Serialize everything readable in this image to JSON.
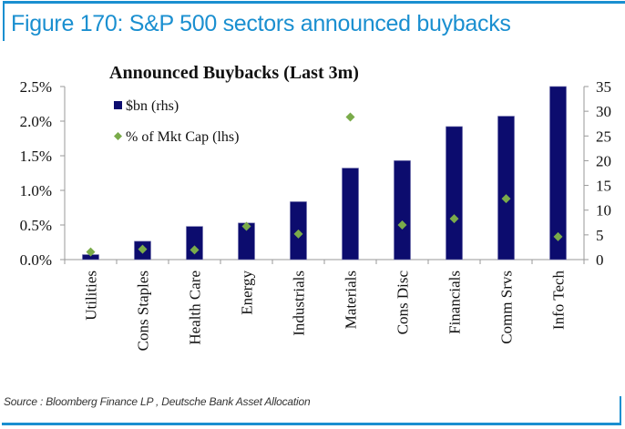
{
  "figure": {
    "title": "Figure 170: S&P 500 sectors announced buybacks",
    "source": "Source : Bloomberg Finance LP , Deutsche Bank Asset Allocation",
    "accent_color": "#1a8fd0"
  },
  "chart_data": {
    "type": "bar",
    "title": "Announced Buybacks (Last 3m)",
    "xlabel": "",
    "categories": [
      "Utilities",
      "Cons Staples",
      "Health Care",
      "Energy",
      "Industrials",
      "Materials",
      "Cons Disc",
      "Financials",
      "Comm Srvs",
      "Info Tech"
    ],
    "series": [
      {
        "name": "$bn (rhs)",
        "kind": "bar",
        "axis": "right",
        "color": "#0c0c6e",
        "values": [
          1.0,
          3.7,
          6.7,
          7.4,
          11.7,
          18.5,
          20.0,
          26.9,
          29.0,
          35.0
        ]
      },
      {
        "name": "% of Mkt Cap (lhs)",
        "kind": "marker-diamond",
        "axis": "left",
        "color": "#7aab4a",
        "values": [
          0.11,
          0.15,
          0.14,
          0.48,
          0.37,
          2.06,
          0.5,
          0.59,
          0.88,
          0.33
        ]
      }
    ],
    "y_left": {
      "label": "",
      "ylim": [
        0,
        2.5
      ],
      "ticks": [
        0,
        0.5,
        1.0,
        1.5,
        2.0,
        2.5
      ],
      "tick_labels": [
        "0.0%",
        "0.5%",
        "1.0%",
        "1.5%",
        "2.0%",
        "2.5%"
      ]
    },
    "y_right": {
      "label": "",
      "ylim": [
        0,
        35
      ],
      "ticks": [
        0,
        5,
        10,
        15,
        20,
        25,
        30,
        35
      ],
      "tick_labels": [
        "0",
        "5",
        "10",
        "15",
        "20",
        "25",
        "30",
        "35"
      ]
    },
    "grid": false,
    "legend": {
      "placement": "top-left",
      "entries": [
        "$bn (rhs)",
        "% of Mkt Cap (lhs)"
      ]
    }
  }
}
